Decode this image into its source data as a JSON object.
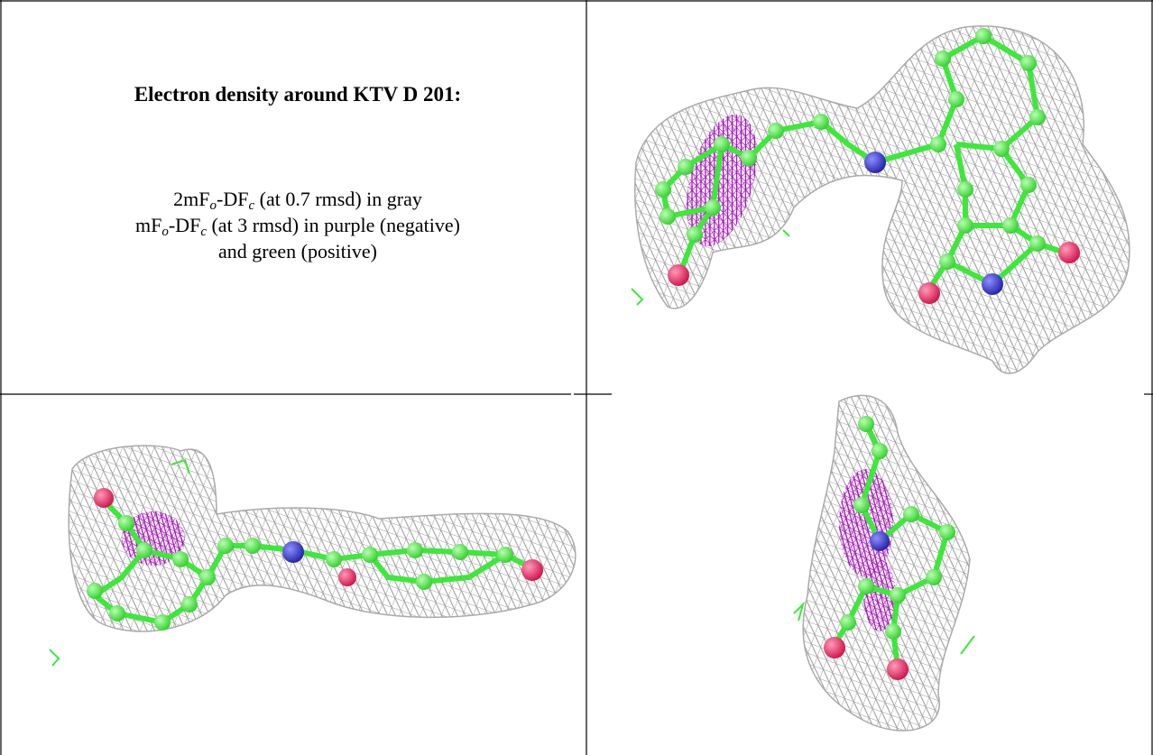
{
  "caption": {
    "title": "Electron density around KTV D 201:",
    "lines": [
      {
        "parts": [
          "2mF",
          "o",
          "-DF",
          "c",
          " (at 0.7 rmsd) in gray"
        ]
      },
      {
        "parts": [
          "mF",
          "o",
          "-DF",
          "c",
          " (at 3 rmsd) in purple (negative)"
        ]
      },
      {
        "parts": [
          "and green (positive)"
        ]
      }
    ]
  }
}
